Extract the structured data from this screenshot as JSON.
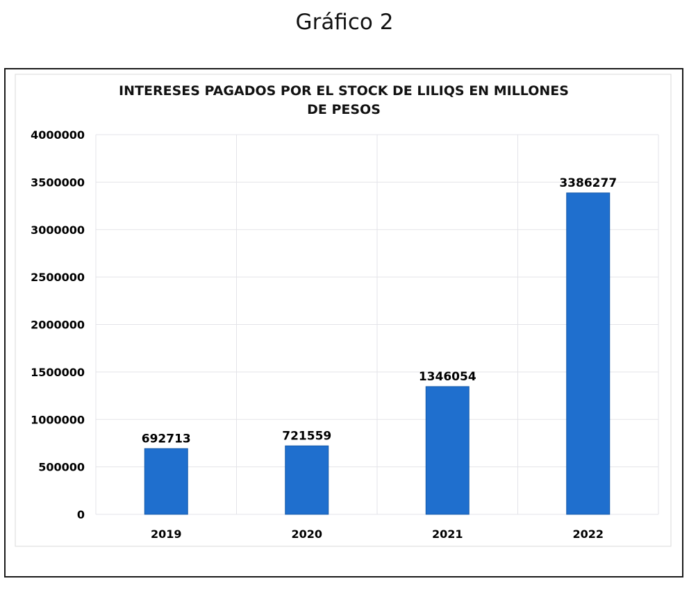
{
  "caption": "Gráfico 2",
  "chart_data": {
    "type": "bar",
    "title_lines": [
      "INTERESES PAGADOS POR EL STOCK DE LILIQS EN MILLONES",
      "DE PESOS"
    ],
    "categories": [
      "2019",
      "2020",
      "2021",
      "2022"
    ],
    "values": [
      692713,
      721559,
      1346054,
      3386277
    ],
    "data_labels": [
      "692713",
      "721559",
      "1346054",
      "3386277"
    ],
    "ylim": [
      0,
      4000000
    ],
    "yticks": [
      0,
      500000,
      1000000,
      1500000,
      2000000,
      2500000,
      3000000,
      3500000,
      4000000
    ],
    "ytick_labels": [
      "0",
      "500000",
      "1000000",
      "1500000",
      "2000000",
      "2500000",
      "3000000",
      "3500000",
      "4000000"
    ],
    "grid": true,
    "bar_color": "#1f6fce",
    "bar_edge_color": "#1558a8",
    "grid_color": "#e3e3e8"
  }
}
